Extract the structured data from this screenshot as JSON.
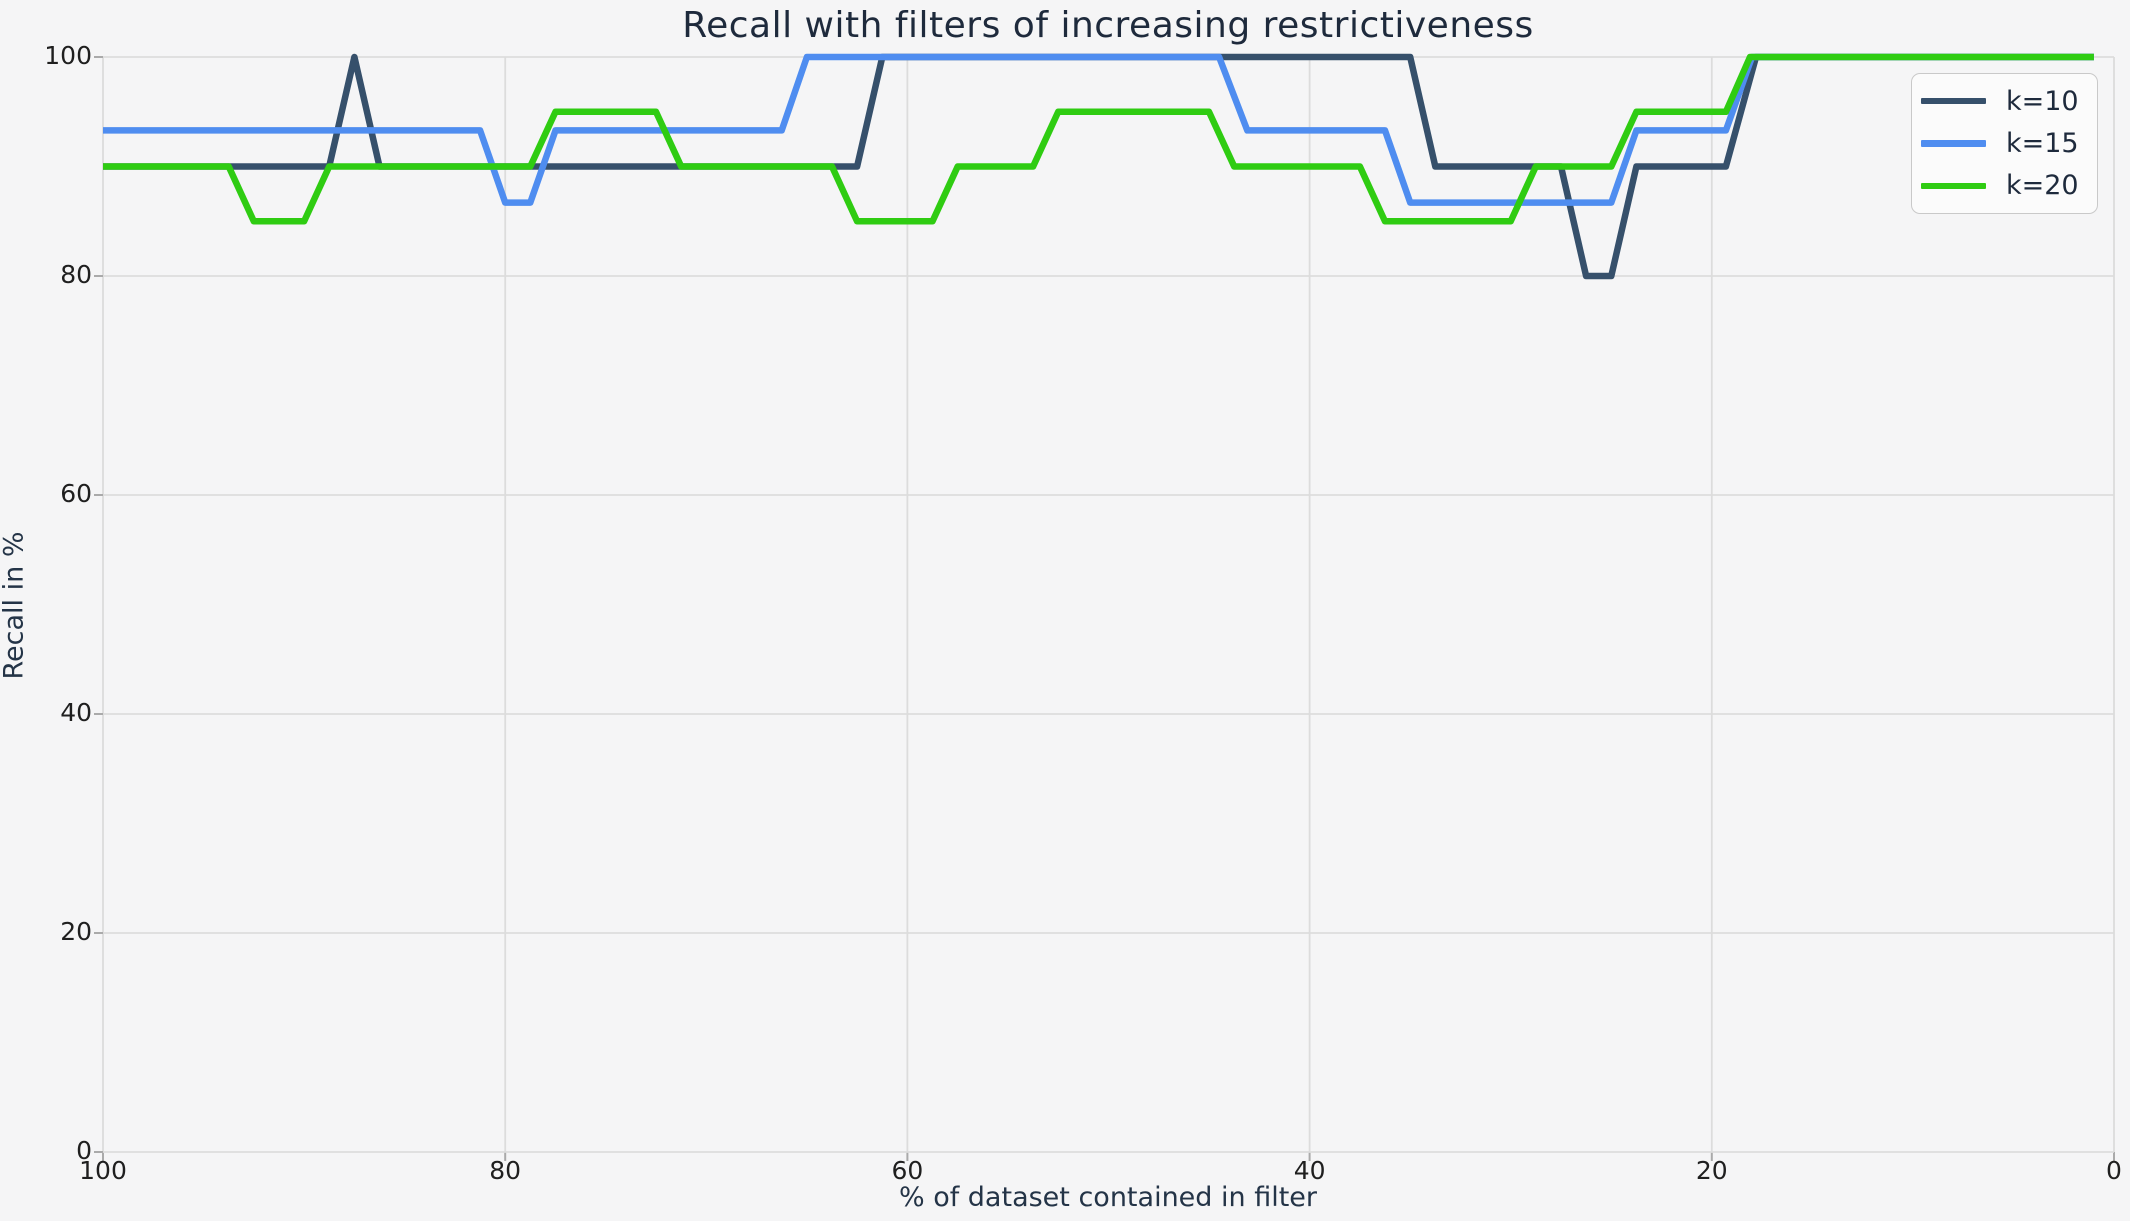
{
  "chart_data": {
    "type": "line",
    "title": "Recall with filters of increasing restrictiveness",
    "xlabel": "% of dataset contained in filter",
    "ylabel": "Recall in %",
    "x_ticks": [
      100,
      80,
      60,
      40,
      20,
      0
    ],
    "y_ticks": [
      0,
      20,
      40,
      60,
      80,
      100
    ],
    "xlim": [
      100,
      0
    ],
    "ylim": [
      0,
      100
    ],
    "x_axis_inverted": true,
    "grid": true,
    "legend_position": "upper right",
    "series": [
      {
        "name": "k=10",
        "color": "#36506b",
        "points": [
          [
            100,
            90
          ],
          [
            88.75,
            90
          ],
          [
            87.5,
            100
          ],
          [
            86.25,
            90
          ],
          [
            62.5,
            90
          ],
          [
            61.25,
            100
          ],
          [
            35,
            100
          ],
          [
            33.75,
            90
          ],
          [
            27.5,
            90
          ],
          [
            26.25,
            80
          ],
          [
            25,
            80
          ],
          [
            23.75,
            90
          ],
          [
            19.3,
            90
          ],
          [
            17.8,
            100
          ],
          [
            1,
            100
          ]
        ]
      },
      {
        "name": "k=15",
        "color": "#4f8df0",
        "points": [
          [
            100,
            93.3
          ],
          [
            81.25,
            93.3
          ],
          [
            80,
            86.7
          ],
          [
            78.75,
            86.7
          ],
          [
            77.5,
            93.3
          ],
          [
            66.25,
            93.3
          ],
          [
            65,
            100
          ],
          [
            44.5,
            100
          ],
          [
            43.1,
            93.3
          ],
          [
            36.25,
            93.3
          ],
          [
            35,
            86.7
          ],
          [
            25,
            86.7
          ],
          [
            23.75,
            93.3
          ],
          [
            19.3,
            93.3
          ],
          [
            18,
            100
          ],
          [
            1,
            100
          ]
        ]
      },
      {
        "name": "k=20",
        "color": "#2fcc12",
        "points": [
          [
            100,
            90
          ],
          [
            93.75,
            90
          ],
          [
            92.5,
            85
          ],
          [
            90,
            85
          ],
          [
            88.75,
            90
          ],
          [
            78.75,
            90
          ],
          [
            77.5,
            95
          ],
          [
            72.5,
            95
          ],
          [
            71.25,
            90
          ],
          [
            63.75,
            90
          ],
          [
            62.5,
            85
          ],
          [
            58.75,
            85
          ],
          [
            57.5,
            90
          ],
          [
            53.75,
            90
          ],
          [
            52.5,
            95
          ],
          [
            45,
            95
          ],
          [
            43.75,
            90
          ],
          [
            37.5,
            90
          ],
          [
            36.25,
            85
          ],
          [
            30,
            85
          ],
          [
            28.75,
            90
          ],
          [
            25,
            90
          ],
          [
            23.75,
            95
          ],
          [
            19.3,
            95
          ],
          [
            18.1,
            100
          ],
          [
            1,
            100
          ]
        ]
      }
    ]
  },
  "style": {
    "background": "#f5f5f6",
    "gridline_color": "#dcdcdc",
    "tick_mark_color": "#aaaaaa",
    "tick_label_color": "#1f1f1f",
    "text_color": "#1e2a3c",
    "legend_border_color": "#c9c9c9",
    "legend_background": "#fbfbfb",
    "line_width": 6.5
  }
}
